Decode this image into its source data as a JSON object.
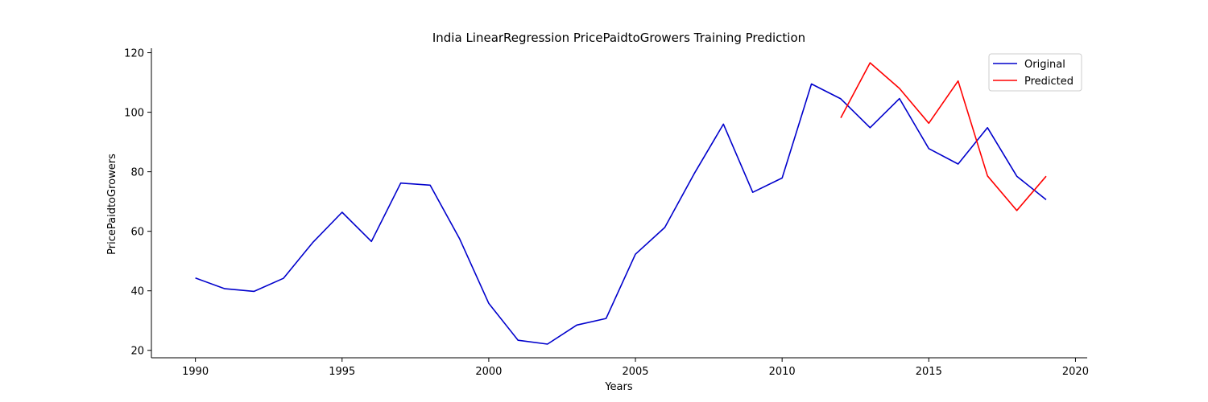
{
  "chart_data": {
    "type": "line",
    "title": "India LinearRegression PricePaidtoGrowers Training Prediction",
    "xlabel": "Years",
    "ylabel": "PricePaidtoGrowers",
    "xlim": [
      1988.5,
      2020.4
    ],
    "ylim": [
      17.5,
      121.5
    ],
    "xticks": [
      1990,
      1995,
      2000,
      2005,
      2010,
      2015,
      2020
    ],
    "yticks": [
      20,
      40,
      60,
      80,
      100,
      120
    ],
    "grid": false,
    "legend": "top-right",
    "series": [
      {
        "name": "Original",
        "color": "#0000cc",
        "x": [
          1990,
          1991,
          1992,
          1993,
          1994,
          1995,
          1996,
          1997,
          1998,
          1999,
          2000,
          2001,
          2002,
          2003,
          2004,
          2005,
          2006,
          2007,
          2008,
          2009,
          2010,
          2011,
          2012,
          2013,
          2014,
          2015,
          2016,
          2017,
          2018,
          2019
        ],
        "y": [
          44.3,
          40.7,
          39.8,
          44.2,
          56.2,
          66.4,
          56.6,
          76.2,
          75.5,
          57.6,
          35.8,
          23.4,
          22.1,
          28.5,
          30.7,
          52.3,
          61.3,
          79.3,
          96.0,
          73.1,
          77.9,
          109.5,
          104.5,
          94.8,
          104.6,
          87.8,
          82.6,
          94.8,
          78.5,
          70.6
        ]
      },
      {
        "name": "Predicted",
        "color": "#ff0000",
        "x": [
          2012,
          2013,
          2014,
          2015,
          2016,
          2017,
          2018,
          2019
        ],
        "y": [
          98.1,
          116.6,
          108.0,
          96.3,
          110.5,
          78.6,
          67.0,
          78.5
        ]
      }
    ]
  }
}
